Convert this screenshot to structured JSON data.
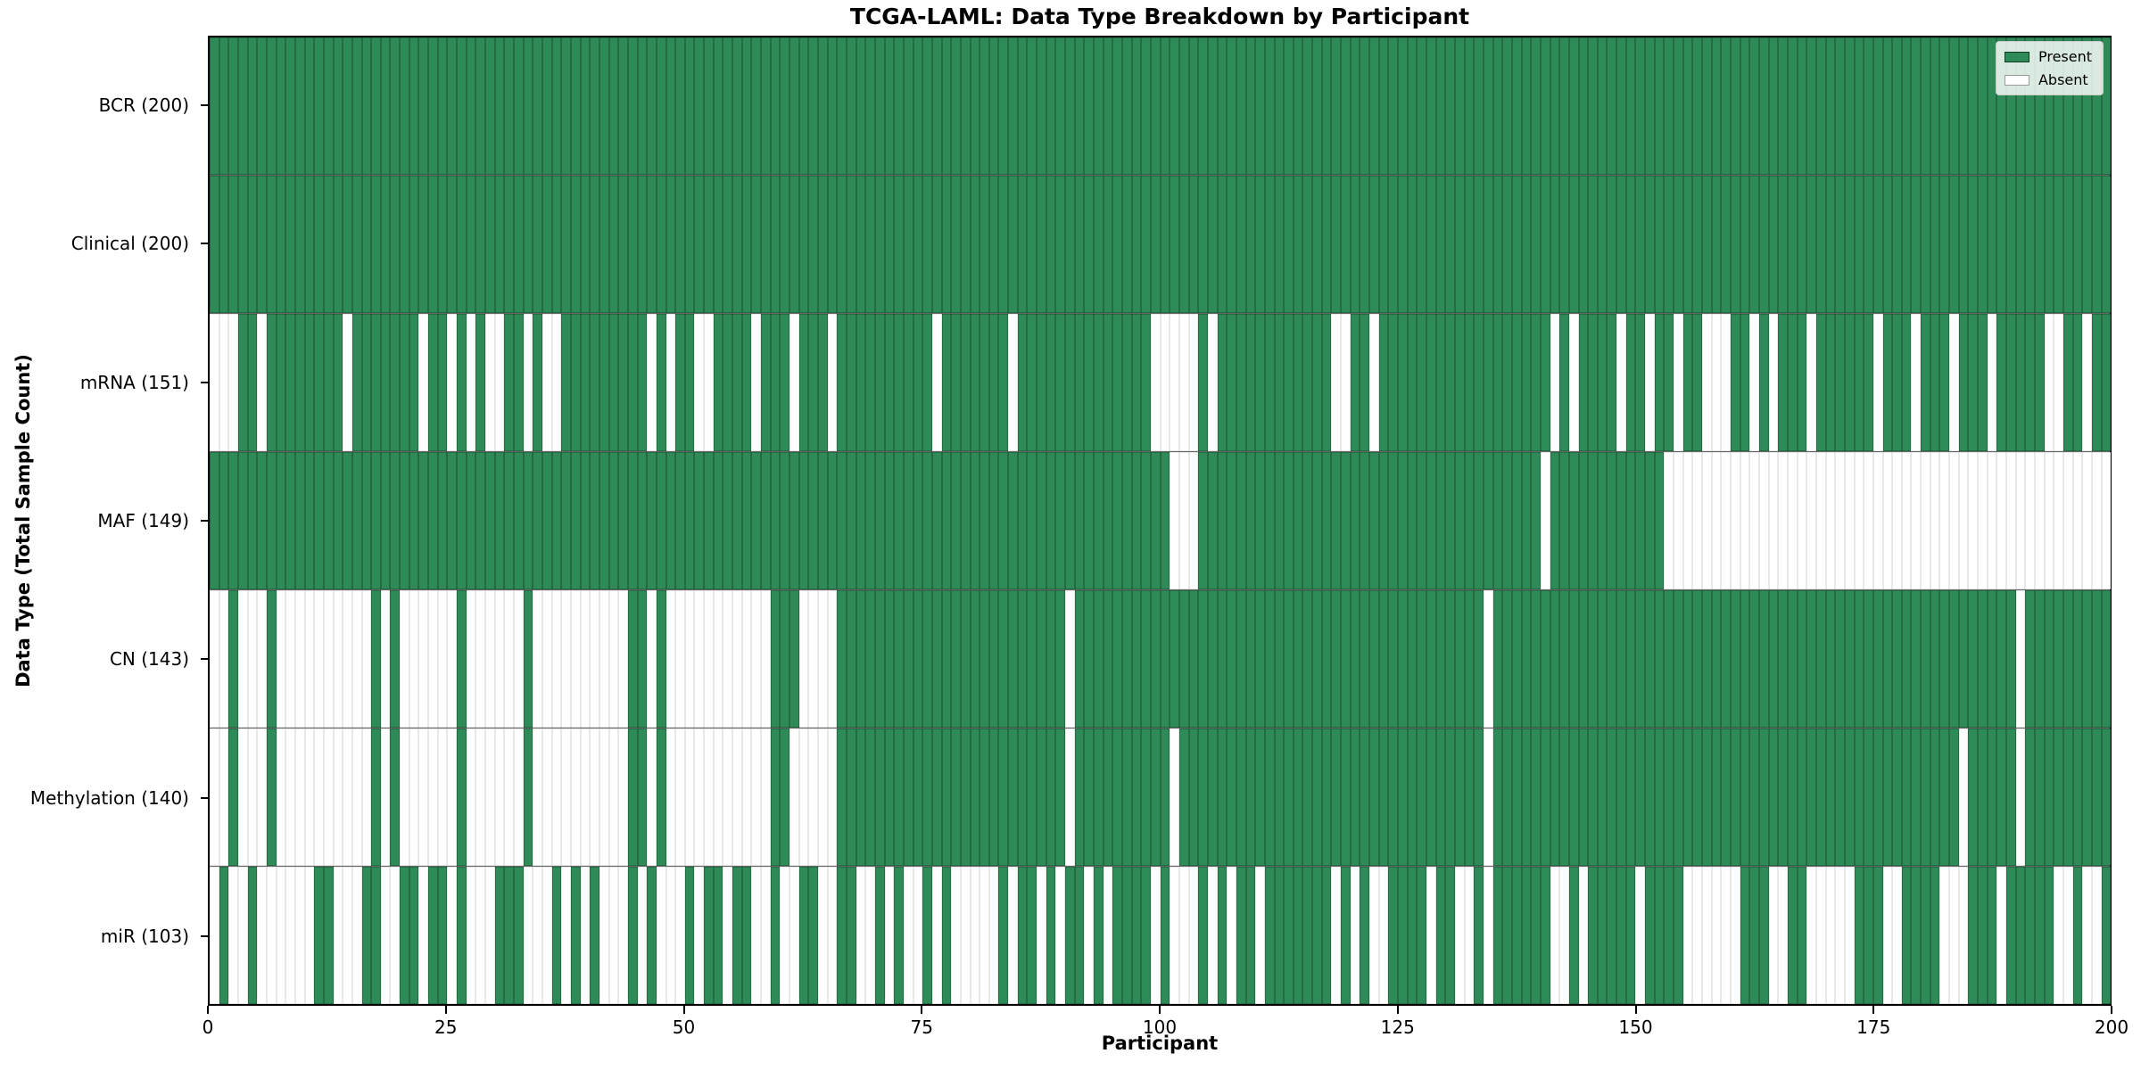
{
  "title": "TCGA-LAML: Data Type Breakdown by Participant",
  "xlabel": "Participant",
  "ylabel": "Data Type (Total Sample Count)",
  "legend": {
    "present_label": "Present",
    "absent_label": "Absent",
    "position": "upper right"
  },
  "colors": {
    "present": "#2e8b57",
    "absent": "#ffffff",
    "row_divider": "#000000",
    "frame": "#000000"
  },
  "chart_data": {
    "type": "heatmap",
    "x_axis": {
      "label": "Participant",
      "ticks": [
        0,
        25,
        50,
        75,
        100,
        125,
        150,
        175,
        200
      ],
      "range": [
        0,
        200
      ]
    },
    "n_participants": 200,
    "cell_states": [
      "Present",
      "Absent"
    ],
    "grid": false,
    "rows": [
      {
        "label": "BCR (200)",
        "name": "BCR",
        "total_present": 200,
        "absent_cols": []
      },
      {
        "label": "Clinical (200)",
        "name": "Clinical",
        "total_present": 200,
        "absent_cols": []
      },
      {
        "label": "mRNA (151)",
        "name": "mRNA",
        "total_present": 151,
        "absent_cols": [
          0,
          1,
          2,
          5,
          14,
          22,
          25,
          27,
          29,
          30,
          33,
          35,
          36,
          46,
          48,
          51,
          52,
          57,
          61,
          65,
          76,
          84,
          99,
          100,
          101,
          102,
          103,
          105,
          118,
          119,
          122,
          141,
          143,
          148,
          151,
          154,
          157,
          158,
          159,
          162,
          164,
          168,
          175,
          179,
          183,
          187,
          193,
          194,
          197
        ]
      },
      {
        "label": "MAF (149)",
        "name": "MAF",
        "total_present": 149,
        "absent_cols": [
          101,
          102,
          103,
          140,
          153,
          154,
          155,
          156,
          157,
          158,
          159,
          160,
          161,
          162,
          163,
          164,
          165,
          166,
          167,
          168,
          169,
          170,
          171,
          172,
          173,
          174,
          175,
          176,
          177,
          178,
          179,
          180,
          181,
          182,
          183,
          184,
          185,
          186,
          187,
          188,
          189,
          190,
          191,
          192,
          193,
          194,
          195,
          196,
          197,
          198,
          199
        ]
      },
      {
        "label": "CN (143)",
        "name": "CN",
        "total_present": 143,
        "absent_cols": [
          0,
          1,
          3,
          4,
          5,
          7,
          8,
          9,
          10,
          11,
          12,
          13,
          14,
          15,
          16,
          18,
          20,
          21,
          22,
          23,
          24,
          25,
          27,
          28,
          29,
          30,
          31,
          32,
          34,
          35,
          36,
          37,
          38,
          39,
          40,
          41,
          42,
          43,
          46,
          48,
          49,
          50,
          51,
          52,
          53,
          54,
          55,
          56,
          57,
          58,
          62,
          63,
          64,
          65,
          90,
          134,
          190
        ]
      },
      {
        "label": "Methylation (140)",
        "name": "Methylation",
        "total_present": 140,
        "absent_cols": [
          0,
          1,
          3,
          4,
          5,
          7,
          8,
          9,
          10,
          11,
          12,
          13,
          14,
          15,
          16,
          18,
          20,
          21,
          22,
          23,
          24,
          25,
          27,
          28,
          29,
          30,
          31,
          32,
          34,
          35,
          36,
          37,
          38,
          39,
          40,
          41,
          42,
          43,
          46,
          48,
          49,
          50,
          51,
          52,
          53,
          54,
          55,
          56,
          57,
          58,
          61,
          62,
          63,
          64,
          65,
          90,
          101,
          134,
          184,
          190
        ]
      },
      {
        "label": "miR (103)",
        "name": "miR",
        "total_present": 103,
        "absent_cols": [
          0,
          2,
          3,
          5,
          6,
          7,
          8,
          9,
          10,
          13,
          14,
          15,
          18,
          19,
          22,
          25,
          27,
          28,
          29,
          33,
          34,
          35,
          37,
          39,
          41,
          42,
          43,
          45,
          47,
          48,
          49,
          51,
          54,
          57,
          58,
          60,
          61,
          64,
          65,
          68,
          69,
          71,
          73,
          74,
          76,
          78,
          79,
          80,
          81,
          82,
          84,
          87,
          89,
          92,
          94,
          99,
          101,
          102,
          103,
          105,
          107,
          110,
          118,
          120,
          122,
          123,
          128,
          131,
          132,
          134,
          141,
          142,
          144,
          150,
          155,
          156,
          157,
          158,
          159,
          160,
          164,
          165,
          168,
          169,
          170,
          171,
          172,
          176,
          177,
          182,
          183,
          184,
          188,
          194,
          195,
          197,
          198
        ]
      }
    ]
  }
}
